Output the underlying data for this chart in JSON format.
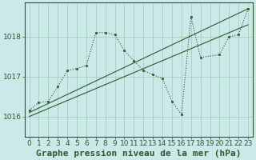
{
  "background_color": "#cce8e8",
  "plot_bg_color": "#cce8e8",
  "grid_color": "#99ccbb",
  "line_color": "#2d5a2d",
  "border_color": "#2d5a2d",
  "title": "Graphe pression niveau de la mer (hPa)",
  "xlim": [
    -0.5,
    23.5
  ],
  "ylim": [
    1015.5,
    1018.85
  ],
  "yticks": [
    1016,
    1017,
    1018
  ],
  "xticks": [
    0,
    1,
    2,
    3,
    4,
    5,
    6,
    7,
    8,
    9,
    10,
    11,
    12,
    13,
    14,
    15,
    16,
    17,
    18,
    19,
    20,
    21,
    22,
    23
  ],
  "trend_line1": {
    "x": [
      0,
      23
    ],
    "y": [
      1016.1,
      1018.7
    ]
  },
  "trend_line2": {
    "x": [
      0,
      23
    ],
    "y": [
      1016.0,
      1018.3
    ]
  },
  "data_line": {
    "x": [
      0,
      1,
      2,
      3,
      4,
      5,
      6,
      7,
      8,
      9,
      10,
      11,
      12,
      13,
      14,
      15,
      16,
      17,
      18,
      20,
      21,
      22,
      23
    ],
    "y": [
      1016.15,
      1016.35,
      1016.38,
      1016.75,
      1017.15,
      1017.2,
      1017.28,
      1018.1,
      1018.1,
      1018.05,
      1017.65,
      1017.4,
      1017.15,
      1017.05,
      1016.95,
      1016.38,
      1016.05,
      1018.5,
      1017.48,
      1017.55,
      1018.0,
      1018.05,
      1018.7
    ]
  },
  "title_fontsize": 8,
  "tick_fontsize": 6.5
}
